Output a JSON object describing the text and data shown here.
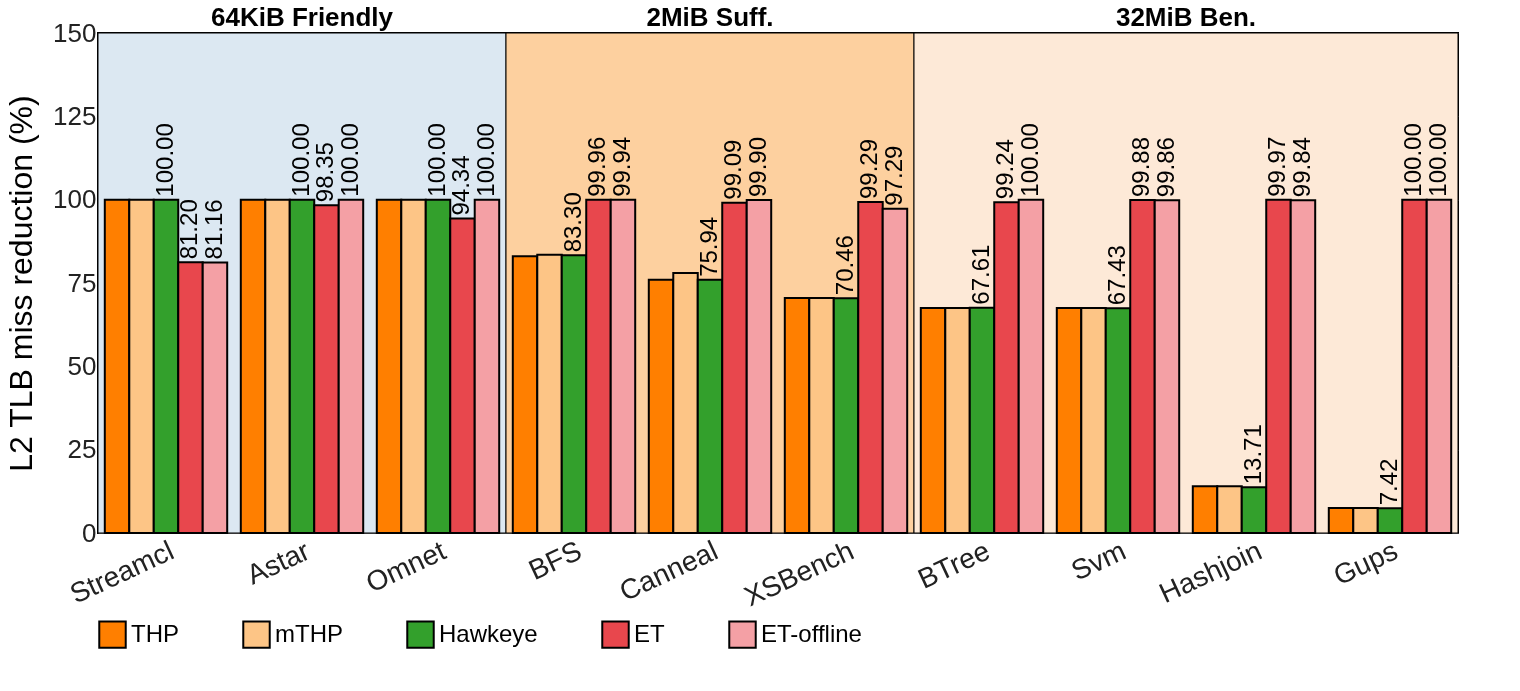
{
  "chart_data": {
    "type": "bar",
    "ylabel": "L2 TLB miss reduction (%)",
    "categories": [
      "Streamcl",
      "Astar",
      "Omnet",
      "BFS",
      "Canneal",
      "XSBench",
      "BTree",
      "Svm",
      "Hashjoin",
      "Gups"
    ],
    "series": [
      {
        "name": "THP",
        "color": "#ff7f00",
        "values": [
          100,
          100,
          100,
          83,
          76,
          70.5,
          67.5,
          67.5,
          14,
          7.5
        ]
      },
      {
        "name": "mTHP",
        "color": "#fdc586",
        "values": [
          100,
          100,
          100,
          83.5,
          78,
          70.5,
          67.5,
          67.5,
          14,
          7.5
        ]
      },
      {
        "name": "Hawkeye",
        "color": "#33a02c",
        "values": [
          100,
          100,
          100,
          83.3,
          75.94,
          70.46,
          67.61,
          67.43,
          13.71,
          7.42
        ],
        "value_labels": [
          "100.00",
          "100.00",
          "100.00",
          "83.30",
          "75.94",
          "70.46",
          "67.61",
          "67.43",
          "13.71",
          "7.42"
        ]
      },
      {
        "name": "ET",
        "color": "#e8474d",
        "values": [
          81.2,
          98.35,
          94.34,
          99.96,
          99.09,
          99.29,
          99.24,
          99.88,
          99.97,
          100
        ],
        "value_labels": [
          "81.20",
          "98.35",
          "94.34",
          "99.96",
          "99.09",
          "99.29",
          "99.24",
          "99.88",
          "99.97",
          "100.00"
        ]
      },
      {
        "name": "ET-offline",
        "color": "#f4a0a5",
        "values": [
          81.16,
          100,
          100,
          99.94,
          99.9,
          97.29,
          100,
          99.86,
          99.84,
          100
        ],
        "value_labels": [
          "81.16",
          "100.00",
          "100.00",
          "99.94",
          "99.90",
          "97.29",
          "100.00",
          "99.86",
          "99.84",
          "100.00"
        ]
      }
    ],
    "ylim": [
      0,
      150
    ],
    "yticks": [
      0,
      25,
      50,
      75,
      100,
      125,
      150
    ],
    "grid": true,
    "legend": "bottom",
    "bands": [
      {
        "axis": "x",
        "from": "Streamcl",
        "to": "Omnet",
        "label": "64KiB Friendly",
        "color": "#dce8f2"
      },
      {
        "axis": "x",
        "from": "BFS",
        "to": "XSBench",
        "label": "2MiB Suff.",
        "color": "#fdd09f"
      },
      {
        "axis": "x",
        "from": "BTree",
        "to": "Gups",
        "label": "32MiB Ben.",
        "color": "#fde9d7"
      }
    ]
  }
}
